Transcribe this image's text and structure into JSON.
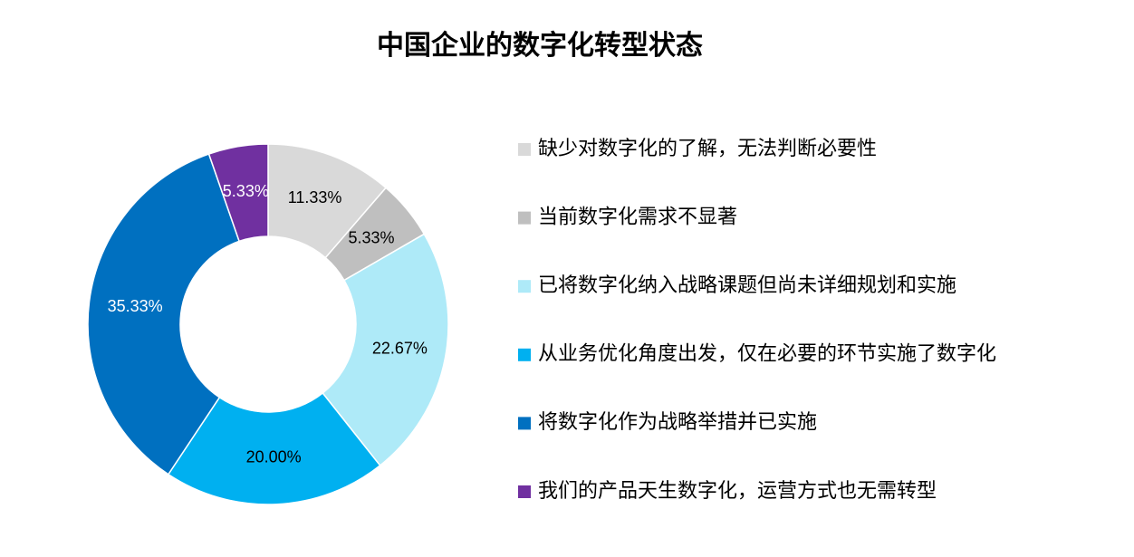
{
  "chart_data": {
    "type": "donut",
    "title": "中国企业的数字化转型状态",
    "categories": [
      "缺少对数字化的了解，无法判断必要性",
      "当前数字化需求不显著",
      "已将数字化纳入战略课题但尚未详细规划和实施",
      "从业务优化角度出发，仅在必要的环节实施了数字化",
      "将数字化作为战略举措并已实施",
      "我们的产品天生数字化，运营方式也无需转型"
    ],
    "values": [
      11.33,
      5.33,
      22.67,
      20.0,
      35.33,
      5.33
    ],
    "value_labels": [
      "11.33%",
      "5.33%",
      "22.67%",
      "20.00%",
      "35.33%",
      "5.33%"
    ],
    "colors": [
      "#d9d9d9",
      "#bfbfbf",
      "#aeeaf8",
      "#00b0f0",
      "#0070c0",
      "#7030a0"
    ],
    "legend": "right"
  }
}
